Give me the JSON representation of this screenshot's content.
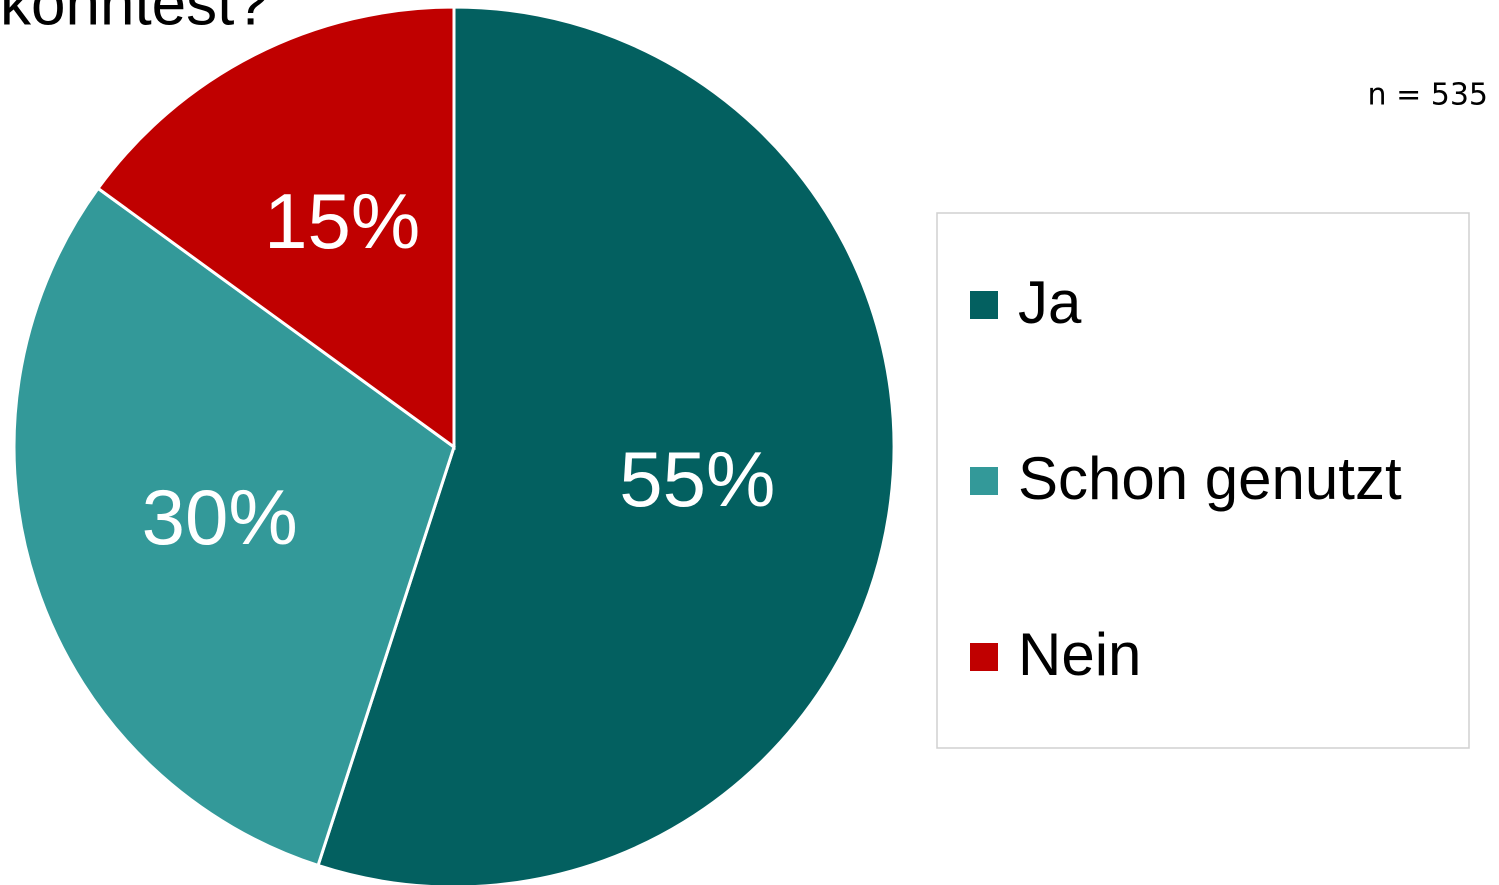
{
  "chart_data": {
    "type": "pie",
    "title": "könntest?",
    "annotation": "n = 535",
    "categories": [
      "Ja",
      "Schon genutzt",
      "Nein"
    ],
    "values": [
      55,
      30,
      15
    ],
    "value_labels": [
      "55%",
      "30%",
      "15%"
    ],
    "colors": [
      "#036060",
      "#339999",
      "#c00000"
    ],
    "legend": "right"
  }
}
